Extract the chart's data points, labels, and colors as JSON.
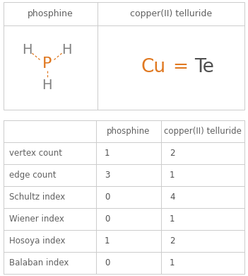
{
  "col_headers": [
    "",
    "phosphine",
    "copper(II) telluride"
  ],
  "row_labels": [
    "vertex count",
    "edge count",
    "Schultz index",
    "Wiener index",
    "Hosoya index",
    "Balaban index"
  ],
  "phosphine_values": [
    "1",
    "3",
    "0",
    "0",
    "1",
    "0"
  ],
  "telluride_values": [
    "2",
    "1",
    "4",
    "1",
    "2",
    "1"
  ],
  "header_color": "#606060",
  "grid_color": "#cccccc",
  "background_color": "#ffffff",
  "orange_color": "#e07820",
  "gray_color": "#808080",
  "dark_gray": "#505050"
}
